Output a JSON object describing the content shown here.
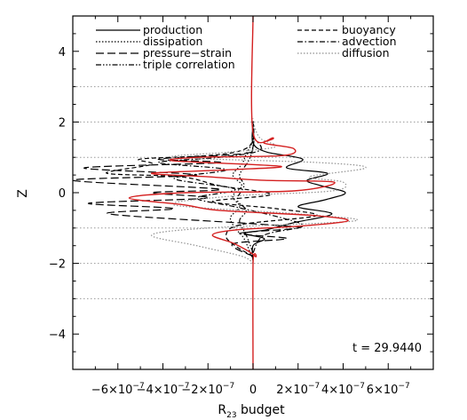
{
  "chart_data": {
    "type": "line",
    "xlabel": "R",
    "xlabel_subscript": "23",
    "xlabel_suffix": " budget",
    "ylabel": "Z",
    "xlim": [
      -8e-07,
      8e-07
    ],
    "ylim": [
      -5,
      5
    ],
    "x_ticks": [
      {
        "value": -6e-07,
        "mant": "−6×10",
        "exp": "−7"
      },
      {
        "value": -4e-07,
        "mant": "−4×10",
        "exp": "−7"
      },
      {
        "value": -2e-07,
        "mant": "−2×10",
        "exp": "−7"
      },
      {
        "value": 0,
        "mant": "0",
        "exp": ""
      },
      {
        "value": 2e-07,
        "mant": "2×10",
        "exp": "−7"
      },
      {
        "value": 4e-07,
        "mant": "4×10",
        "exp": "−7"
      },
      {
        "value": 6e-07,
        "mant": "6×10",
        "exp": "−7"
      }
    ],
    "y_ticks": [
      -4,
      -2,
      0,
      2,
      4
    ],
    "dotted_gridlines_y": [
      -3,
      -2,
      -1,
      1,
      2,
      3
    ],
    "annotation": "t = 29.9440",
    "legend": {
      "left": [
        {
          "name": "production",
          "style": "solid"
        },
        {
          "name": "dissipation",
          "style": "dotted"
        },
        {
          "name": "pressure−strain",
          "style": "longdash"
        },
        {
          "name": "triple correlation",
          "style": "dashdotdotdot"
        }
      ],
      "right": [
        {
          "name": "buoyancy",
          "style": "dash"
        },
        {
          "name": "advection",
          "style": "dashdot"
        },
        {
          "name": "diffusion",
          "style": "dotted-gray"
        }
      ]
    },
    "colors": {
      "total": "#d42020",
      "gray": "#909090",
      "black": "#000000"
    },
    "series": [
      {
        "name": "production",
        "style": "solid",
        "color": "#000000",
        "points": [
          [
            0,
            -1.95
          ],
          [
            0,
            -1.5
          ],
          [
            5e-08,
            -1.3
          ],
          [
            -4e-08,
            -1.15
          ],
          [
            6e-08,
            -1.05
          ],
          [
            1.8e-07,
            -0.85
          ],
          [
            3.5e-07,
            -0.6
          ],
          [
            2e-07,
            -0.4
          ],
          [
            3.2e-07,
            -0.2
          ],
          [
            4.1e-07,
            0.0
          ],
          [
            3e-07,
            0.2
          ],
          [
            2.4e-07,
            0.35
          ],
          [
            3.3e-07,
            0.55
          ],
          [
            1.5e-07,
            0.7
          ],
          [
            2.2e-07,
            0.95
          ],
          [
            6e-08,
            1.15
          ],
          [
            0,
            1.4
          ],
          [
            0,
            1.9
          ]
        ]
      },
      {
        "name": "dissipation",
        "style": "dotted",
        "color": "#000000",
        "points": [
          [
            0,
            -1.9
          ],
          [
            -4e-08,
            -1.3
          ],
          [
            -8e-08,
            -1.0
          ],
          [
            -1e-07,
            -0.7
          ],
          [
            -6e-08,
            -0.4
          ],
          [
            -9e-08,
            -0.1
          ],
          [
            -5e-08,
            0.2
          ],
          [
            -9e-08,
            0.5
          ],
          [
            -5e-08,
            0.8
          ],
          [
            -3e-08,
            1.1
          ],
          [
            0,
            1.5
          ],
          [
            0,
            2.0
          ]
        ]
      },
      {
        "name": "pressure−strain",
        "style": "longdash",
        "color": "#000000",
        "points": [
          [
            0,
            -1.8
          ],
          [
            -9e-08,
            -1.45
          ],
          [
            1.5e-07,
            -1.3
          ],
          [
            -6e-08,
            -1.15
          ],
          [
            2e-07,
            -1.0
          ],
          [
            5e-08,
            -0.9
          ],
          [
            -6.4e-07,
            -0.6
          ],
          [
            -3.5e-07,
            -0.45
          ],
          [
            -7.3e-07,
            -0.3
          ],
          [
            -2e-07,
            -0.15
          ],
          [
            -4.5e-07,
            0.0
          ],
          [
            -1.5e-07,
            0.1
          ],
          [
            -8e-07,
            0.35
          ],
          [
            -2.5e-07,
            0.5
          ],
          [
            -7.5e-07,
            0.7
          ],
          [
            -1.5e-07,
            0.85
          ],
          [
            -4.2e-07,
            0.95
          ],
          [
            -5e-08,
            1.1
          ],
          [
            0,
            1.3
          ],
          [
            0,
            1.9
          ]
        ]
      },
      {
        "name": "triple correlation",
        "style": "dashdotdotdot",
        "color": "#000000",
        "points": [
          [
            0,
            -1.7
          ],
          [
            -3e-08,
            -1.2
          ],
          [
            -6e-08,
            -0.8
          ],
          [
            -3e-08,
            -0.5
          ],
          [
            -7e-08,
            -0.2
          ],
          [
            -4e-08,
            0.2
          ],
          [
            -6e-08,
            0.5
          ],
          [
            -2e-08,
            0.9
          ],
          [
            0,
            1.3
          ],
          [
            0,
            1.8
          ]
        ]
      },
      {
        "name": "buoyancy",
        "style": "dash",
        "color": "#000000",
        "points": [
          [
            0,
            -1.8
          ],
          [
            -8e-08,
            -1.5
          ],
          [
            -1.2e-07,
            -1.2
          ],
          [
            -5e-08,
            -0.9
          ],
          [
            2.8e-07,
            -0.65
          ],
          [
            1e-07,
            -0.45
          ],
          [
            -1.8e-07,
            -0.25
          ],
          [
            8e-08,
            -0.05
          ],
          [
            -1.5e-07,
            0.2
          ],
          [
            -3.2e-07,
            0.45
          ],
          [
            -6.5e-07,
            0.55
          ],
          [
            -4.5e-07,
            0.8
          ],
          [
            -5e-07,
            0.95
          ],
          [
            -2e-07,
            1.05
          ],
          [
            -5e-08,
            1.2
          ],
          [
            0,
            1.5
          ],
          [
            0,
            2.1
          ]
        ]
      },
      {
        "name": "advection",
        "style": "dashdot",
        "color": "#000000",
        "points": [
          [
            0,
            -1.7
          ],
          [
            5e-08,
            -1.2
          ],
          [
            2.2e-07,
            -0.95
          ],
          [
            1.2e-07,
            -0.7
          ],
          [
            -8e-08,
            -0.4
          ],
          [
            -2.5e-07,
            -0.15
          ],
          [
            -8e-08,
            0.1
          ],
          [
            -3.5e-07,
            0.4
          ],
          [
            -1.2e-07,
            0.65
          ],
          [
            -4.2e-07,
            0.85
          ],
          [
            -1.5e-07,
            1.0
          ],
          [
            3e-08,
            1.2
          ],
          [
            0,
            1.6
          ],
          [
            0,
            2.0
          ]
        ]
      },
      {
        "name": "diffusion",
        "style": "dotted-gray",
        "color": "#909090",
        "points": [
          [
            0,
            -2.0
          ],
          [
            -5e-08,
            -1.8
          ],
          [
            -2.5e-07,
            -1.5
          ],
          [
            -4.5e-07,
            -1.2
          ],
          [
            -2e-07,
            -1.0
          ],
          [
            4.5e-07,
            -0.8
          ],
          [
            2e-07,
            -0.6
          ],
          [
            -3.5e-07,
            -0.35
          ],
          [
            -1e-07,
            -0.1
          ],
          [
            3.5e-07,
            0.05
          ],
          [
            4e-07,
            0.3
          ],
          [
            2.5e-07,
            0.45
          ],
          [
            5e-07,
            0.7
          ],
          [
            3e-07,
            0.85
          ],
          [
            -3.5e-07,
            1.0
          ],
          [
            -1e-07,
            1.15
          ],
          [
            1e-07,
            1.3
          ],
          [
            3e-08,
            1.55
          ],
          [
            0,
            2.0
          ]
        ]
      },
      {
        "name": "total",
        "style": "solid-red",
        "color": "#d42020",
        "points": [
          [
            0,
            -5.0
          ],
          [
            0,
            -2.0
          ],
          [
            1e-08,
            -1.8
          ],
          [
            -8e-08,
            -1.45
          ],
          [
            -1.8e-07,
            -1.2
          ],
          [
            -7e-08,
            -1.05
          ],
          [
            2e-07,
            -0.95
          ],
          [
            4.2e-07,
            -0.8
          ],
          [
            2.8e-07,
            -0.65
          ],
          [
            -1.5e-07,
            -0.5
          ],
          [
            -3e-07,
            -0.35
          ],
          [
            -5.5e-07,
            -0.15
          ],
          [
            -3e-07,
            0.0
          ],
          [
            1.8e-07,
            0.05
          ],
          [
            3.6e-07,
            0.3
          ],
          [
            5e-08,
            0.35
          ],
          [
            -2e-07,
            0.45
          ],
          [
            -4.5e-07,
            0.55
          ],
          [
            -1e-07,
            0.65
          ],
          [
            1.2e-07,
            0.75
          ],
          [
            -3.5e-07,
            0.9
          ],
          [
            -2.4e-07,
            1.0
          ],
          [
            1.3e-07,
            1.05
          ],
          [
            1.8e-07,
            1.25
          ],
          [
            5e-08,
            1.4
          ],
          [
            9e-08,
            1.55
          ],
          [
            0,
            1.7
          ],
          [
            0,
            5.0
          ]
        ]
      }
    ]
  }
}
